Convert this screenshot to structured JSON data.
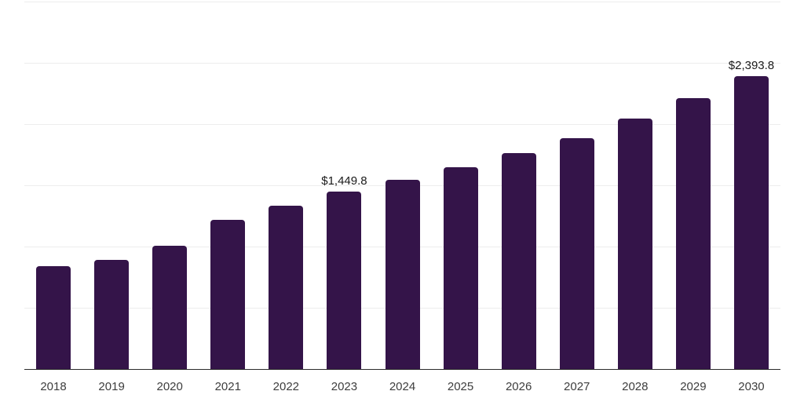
{
  "chart_data": {
    "type": "bar",
    "title": "",
    "xlabel": "",
    "ylabel": "",
    "categories": [
      "2018",
      "2019",
      "2020",
      "2021",
      "2022",
      "2023",
      "2024",
      "2025",
      "2026",
      "2027",
      "2028",
      "2029",
      "2030"
    ],
    "values": [
      840,
      888,
      1006,
      1218,
      1336,
      1449.8,
      1542,
      1647,
      1763,
      1885,
      2042,
      2212,
      2393.8
    ],
    "data_labels": {
      "2023": "$1,449.8",
      "2030": "$2,393.8"
    },
    "ylim": [
      0,
      3000
    ],
    "gridline_interval": 500,
    "grid": true,
    "legend": false,
    "bar_color": "#341449",
    "axis_line_color": "#2b2b2b",
    "gridline_color": "#ededed",
    "tick_label_color": "#3d3d3d",
    "data_label_color": "#1a1a1a"
  }
}
